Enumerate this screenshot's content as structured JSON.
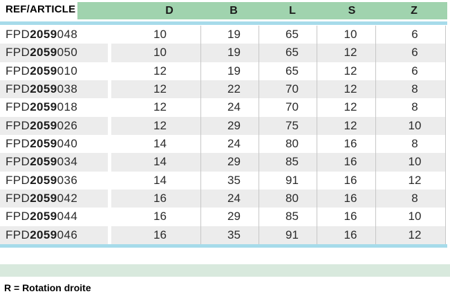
{
  "table": {
    "ref_header": "REF/ARTICLE",
    "columns": [
      "D",
      "B",
      "L",
      "S",
      "Z"
    ],
    "rows": [
      {
        "ref_prefix": "FPD",
        "ref_bold": "2059",
        "ref_suffix": "048",
        "values": [
          "10",
          "19",
          "65",
          "10",
          "6"
        ]
      },
      {
        "ref_prefix": "FPD",
        "ref_bold": "2059",
        "ref_suffix": "050",
        "values": [
          "10",
          "19",
          "65",
          "12",
          "6"
        ]
      },
      {
        "ref_prefix": "FPD",
        "ref_bold": "2059",
        "ref_suffix": "010",
        "values": [
          "12",
          "19",
          "65",
          "12",
          "6"
        ]
      },
      {
        "ref_prefix": "FPD",
        "ref_bold": "2059",
        "ref_suffix": "038",
        "values": [
          "12",
          "22",
          "70",
          "12",
          "8"
        ]
      },
      {
        "ref_prefix": "FPD",
        "ref_bold": "2059",
        "ref_suffix": "018",
        "values": [
          "12",
          "24",
          "70",
          "12",
          "8"
        ]
      },
      {
        "ref_prefix": "FPD",
        "ref_bold": "2059",
        "ref_suffix": "026",
        "values": [
          "12",
          "29",
          "75",
          "12",
          "10"
        ]
      },
      {
        "ref_prefix": "FPD",
        "ref_bold": "2059",
        "ref_suffix": "040",
        "values": [
          "14",
          "24",
          "80",
          "16",
          "8"
        ]
      },
      {
        "ref_prefix": "FPD",
        "ref_bold": "2059",
        "ref_suffix": "034",
        "values": [
          "14",
          "29",
          "85",
          "16",
          "10"
        ]
      },
      {
        "ref_prefix": "FPD",
        "ref_bold": "2059",
        "ref_suffix": "036",
        "values": [
          "14",
          "35",
          "91",
          "16",
          "12"
        ]
      },
      {
        "ref_prefix": "FPD",
        "ref_bold": "2059",
        "ref_suffix": "042",
        "values": [
          "16",
          "24",
          "80",
          "16",
          "8"
        ]
      },
      {
        "ref_prefix": "FPD",
        "ref_bold": "2059",
        "ref_suffix": "044",
        "values": [
          "16",
          "29",
          "85",
          "16",
          "10"
        ]
      },
      {
        "ref_prefix": "FPD",
        "ref_bold": "2059",
        "ref_suffix": "046",
        "values": [
          "16",
          "35",
          "91",
          "16",
          "12"
        ]
      }
    ]
  },
  "footer": {
    "note": "R = Rotation droite"
  },
  "colors": {
    "headerGreen": "#a0d3ae",
    "footerGreen": "#d8e9dd",
    "blueLine": "#a6dbea",
    "rowAlt": "#ececec",
    "gridLine": "#c6c6c6"
  }
}
